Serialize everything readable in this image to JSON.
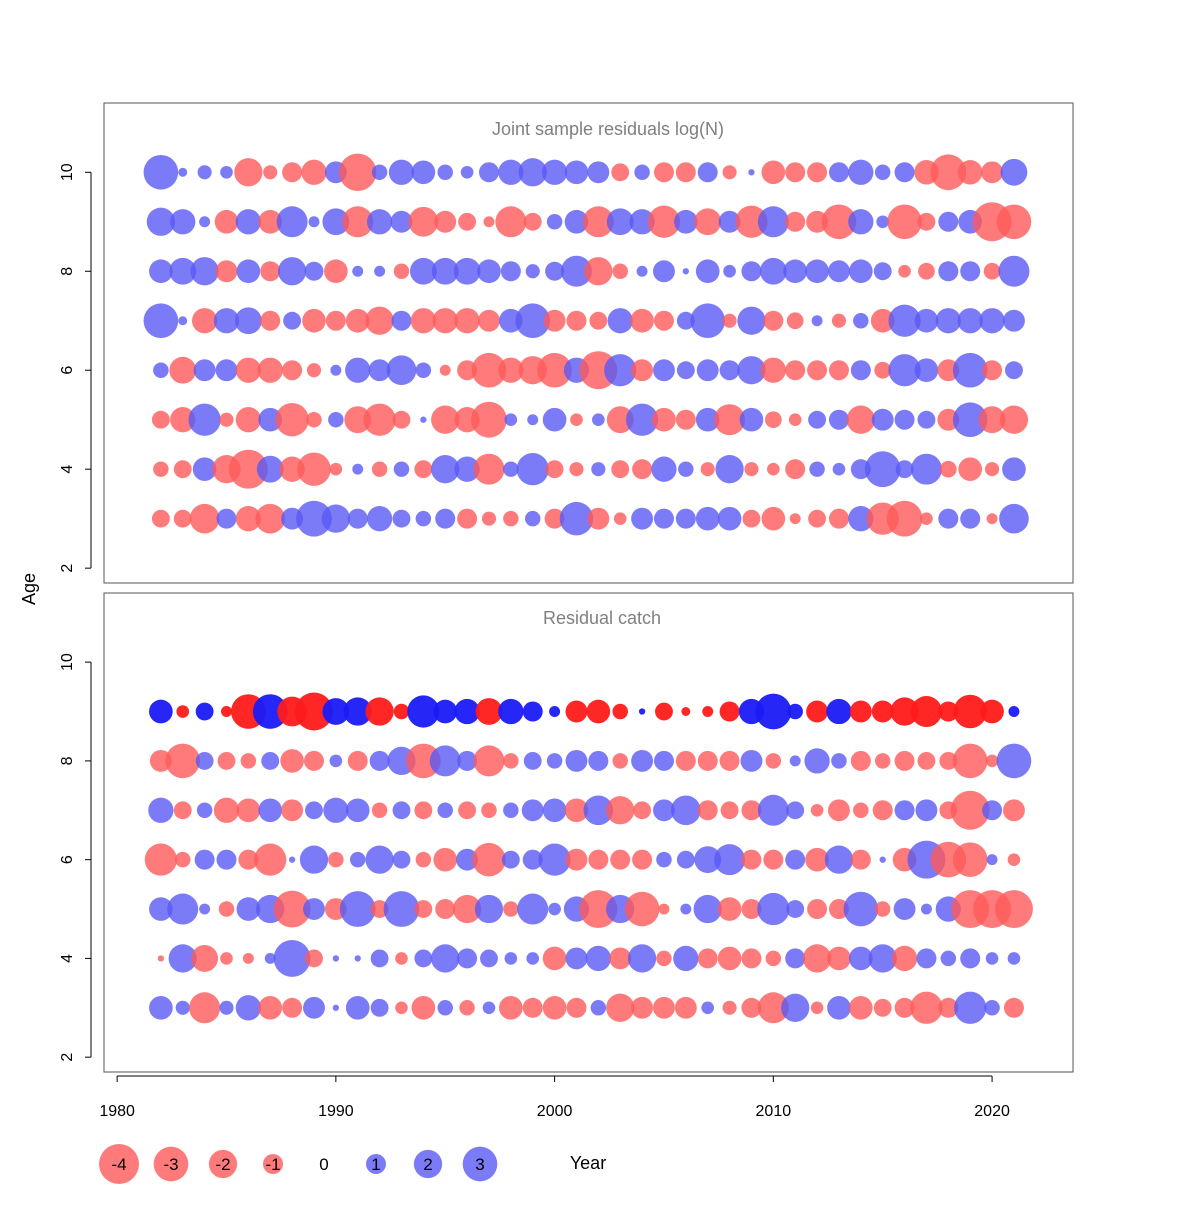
{
  "colors": {
    "positive": "#5a5af5",
    "negative": "#ff5a5a",
    "catch_age9_positive": "#1a1af5",
    "catch_age9_negative": "#ff1a1a",
    "title_text": "#808080",
    "axis": "#000000",
    "frame": "#555555"
  },
  "labels": {
    "ylabel": "Age",
    "xlabel": "Year"
  },
  "legend": {
    "values": [
      -4,
      -3,
      -2,
      -1,
      0,
      1,
      2,
      3
    ],
    "labels": [
      "-4",
      "-3",
      "-2",
      "-1",
      "0",
      "1",
      "2",
      "3"
    ]
  },
  "chart_data": [
    {
      "type": "bubble",
      "title": "Joint sample residuals log(N)",
      "xlim": [
        1979.4,
        2023.7
      ],
      "ylim": [
        1.7,
        11.4
      ],
      "x_ticks": [
        1980,
        1990,
        2000,
        2010,
        2020
      ],
      "y_ticks": [
        2,
        4,
        6,
        8,
        10
      ],
      "x": [
        1982,
        1983,
        1984,
        1985,
        1986,
        1987,
        1988,
        1989,
        1990,
        1991,
        1992,
        1993,
        1994,
        1995,
        1996,
        1997,
        1998,
        1999,
        2000,
        2001,
        2002,
        2003,
        2004,
        2005,
        2006,
        2007,
        2008,
        2009,
        2010,
        2011,
        2012,
        2013,
        2014,
        2015,
        2016,
        2017,
        2018,
        2019,
        2020,
        2021
      ],
      "ages": [
        3,
        4,
        5,
        6,
        7,
        8,
        9,
        10
      ],
      "residuals": {
        "10": [
          3.0,
          0.2,
          0.5,
          0.4,
          -2.0,
          -0.5,
          -1.0,
          -1.6,
          1.2,
          -3.5,
          0.6,
          1.6,
          1.4,
          0.6,
          0.4,
          1.0,
          1.6,
          2.0,
          1.6,
          1.4,
          1.2,
          -0.8,
          0.6,
          -1.0,
          -1.0,
          1.0,
          -0.5,
          0.1,
          -1.4,
          -1.0,
          -1.0,
          1.0,
          1.6,
          0.6,
          1.0,
          -1.5,
          -3.2,
          -1.5,
          -1.2,
          1.8
        ],
        "9": [
          2.0,
          1.6,
          0.3,
          -1.4,
          1.6,
          -1.4,
          2.4,
          0.3,
          1.8,
          -2.4,
          1.6,
          1.2,
          -2.2,
          -1.2,
          -0.8,
          -0.3,
          -2.4,
          -0.8,
          0.6,
          1.4,
          -2.4,
          1.8,
          1.6,
          -2.6,
          1.4,
          -1.8,
          1.2,
          -2.6,
          2.4,
          -1.0,
          -1.2,
          -3.0,
          1.6,
          0.4,
          -3.0,
          -0.8,
          1.0,
          1.4,
          -3.8,
          -3.0
        ],
        "8": [
          1.4,
          1.8,
          2.0,
          -1.2,
          1.4,
          -1.0,
          2.0,
          0.9,
          -1.4,
          0.3,
          0.3,
          -0.6,
          1.8,
          1.8,
          1.8,
          1.4,
          1.0,
          0.5,
          0.9,
          2.4,
          -2.0,
          -0.6,
          0.3,
          1.2,
          0.1,
          1.4,
          0.4,
          1.0,
          1.8,
          1.4,
          1.4,
          1.2,
          1.4,
          0.8,
          -0.4,
          -0.7,
          1.0,
          1.0,
          -0.7,
          2.4
        ],
        "7": [
          3.0,
          0.2,
          -1.6,
          1.6,
          1.8,
          -1.0,
          0.8,
          -1.4,
          -1.0,
          -1.4,
          -2.0,
          1.0,
          -1.6,
          -1.6,
          -1.6,
          -1.2,
          1.4,
          3.0,
          -1.2,
          -1.0,
          -0.8,
          1.6,
          -1.4,
          -1.0,
          0.8,
          3.0,
          -0.5,
          2.0,
          -1.0,
          -0.7,
          0.3,
          -0.5,
          0.6,
          -1.4,
          2.6,
          1.4,
          1.6,
          1.6,
          1.6,
          1.2
        ],
        "6": [
          0.6,
          -1.8,
          1.2,
          1.2,
          -1.6,
          -1.6,
          -1.0,
          -0.5,
          0.3,
          1.6,
          1.2,
          2.2,
          0.6,
          -0.3,
          -1.0,
          -3.0,
          -1.6,
          -2.0,
          -3.0,
          1.6,
          -3.6,
          2.6,
          -1.2,
          1.2,
          0.8,
          1.2,
          1.0,
          2.0,
          -1.6,
          -1.0,
          -1.0,
          -1.0,
          1.0,
          -0.7,
          2.6,
          1.4,
          -1.2,
          3.0,
          -1.0,
          0.8
        ],
        "5": [
          -0.8,
          -1.6,
          2.6,
          -0.5,
          -1.6,
          1.4,
          -2.8,
          -0.6,
          0.6,
          -1.8,
          -2.6,
          -0.8,
          0.1,
          -2.0,
          -1.6,
          -3.2,
          0.4,
          0.3,
          1.4,
          -0.4,
          0.4,
          -1.8,
          2.6,
          -1.4,
          -1.0,
          1.4,
          -2.4,
          1.4,
          -0.7,
          -0.4,
          0.8,
          1.0,
          -2.0,
          1.2,
          1.0,
          0.8,
          -1.2,
          3.0,
          -1.8,
          -2.0
        ],
        "4": [
          -0.6,
          -0.8,
          1.4,
          -2.0,
          -3.8,
          1.8,
          -1.6,
          -2.8,
          -0.4,
          0.3,
          -0.6,
          0.6,
          -0.8,
          2.0,
          1.6,
          -2.4,
          0.6,
          2.6,
          -0.8,
          -0.5,
          0.5,
          -0.8,
          -1.0,
          1.6,
          0.6,
          -0.5,
          2.0,
          -0.5,
          -0.4,
          -1.0,
          0.6,
          0.4,
          1.0,
          3.2,
          0.8,
          2.4,
          -0.7,
          -1.4,
          -0.5,
          1.4
        ],
        "3": [
          -0.8,
          -0.8,
          -2.2,
          1.0,
          -1.6,
          -2.2,
          1.2,
          3.2,
          2.0,
          1.0,
          1.6,
          0.8,
          0.6,
          1.0,
          -1.0,
          -0.5,
          -0.6,
          0.6,
          -1.0,
          2.8,
          -1.2,
          -0.4,
          1.2,
          1.0,
          1.0,
          1.4,
          1.4,
          -0.8,
          -1.4,
          -0.3,
          -0.8,
          -1.0,
          1.6,
          -2.6,
          -3.2,
          -0.4,
          1.0,
          1.0,
          -0.3,
          2.2
        ]
      }
    },
    {
      "type": "bubble",
      "title": "Residual catch",
      "xlim": [
        1979.4,
        2023.7
      ],
      "ylim": [
        1.7,
        11.4
      ],
      "x_ticks": [
        1980,
        1990,
        2000,
        2010,
        2020
      ],
      "y_ticks": [
        2,
        4,
        6,
        8,
        10
      ],
      "x": [
        1982,
        1983,
        1984,
        1985,
        1986,
        1987,
        1988,
        1989,
        1990,
        1991,
        1992,
        1993,
        1994,
        1995,
        1996,
        1997,
        1998,
        1999,
        2000,
        2001,
        2002,
        2003,
        2004,
        2005,
        2006,
        2007,
        2008,
        2009,
        2010,
        2011,
        2012,
        2013,
        2014,
        2015,
        2016,
        2017,
        2018,
        2019,
        2020,
        2021
      ],
      "ages": [
        3,
        4,
        5,
        6,
        7,
        8,
        9
      ],
      "residuals": {
        "9": [
          1.4,
          -0.4,
          0.8,
          -0.3,
          -3.0,
          3.0,
          -2.2,
          -3.6,
          1.8,
          2.0,
          -2.0,
          -0.6,
          2.6,
          1.4,
          1.6,
          -1.8,
          1.6,
          1.0,
          0.3,
          -1.2,
          -1.4,
          -0.6,
          0.1,
          -0.8,
          -0.2,
          -0.3,
          -1.0,
          1.6,
          3.2,
          0.6,
          -1.2,
          1.6,
          -1.2,
          -1.2,
          -2.0,
          -2.4,
          -1.0,
          -2.8,
          -1.4,
          0.3
        ],
        "8": [
          -1.2,
          -3.0,
          0.8,
          -0.8,
          -0.6,
          0.8,
          -1.4,
          -1.0,
          0.4,
          -1.0,
          1.0,
          2.0,
          -3.0,
          2.4,
          1.0,
          -2.4,
          -0.6,
          0.8,
          0.6,
          1.2,
          1.0,
          -0.6,
          1.2,
          1.0,
          -1.0,
          -1.0,
          -1.0,
          1.2,
          -0.6,
          0.3,
          1.6,
          0.6,
          -1.0,
          -0.6,
          -1.0,
          -0.8,
          -0.8,
          -3.0,
          -0.4,
          3.0
        ],
        "7": [
          1.6,
          -0.8,
          0.6,
          -1.6,
          -1.4,
          1.4,
          -1.2,
          0.8,
          1.6,
          1.4,
          -0.6,
          0.8,
          -0.8,
          0.6,
          -0.8,
          -0.6,
          0.6,
          1.2,
          1.4,
          -1.4,
          2.2,
          -2.0,
          -0.8,
          1.2,
          2.2,
          -1.0,
          -0.8,
          -1.0,
          2.4,
          0.8,
          -0.4,
          -1.2,
          -0.6,
          -1.0,
          1.0,
          1.2,
          -0.8,
          -3.8,
          1.0,
          -1.2
        ],
        "6": [
          -2.6,
          -0.6,
          1.0,
          1.0,
          -1.0,
          -2.6,
          0.1,
          2.0,
          -0.6,
          0.6,
          2.0,
          0.8,
          -0.6,
          -1.4,
          1.2,
          -2.8,
          0.8,
          1.0,
          2.6,
          -1.2,
          -1.0,
          -1.0,
          -1.0,
          0.6,
          0.8,
          1.8,
          2.4,
          -1.0,
          -1.0,
          1.0,
          -1.4,
          2.0,
          -1.0,
          0.1,
          -1.4,
          3.6,
          -3.2,
          -3.0,
          0.3,
          -0.4
        ],
        "5": [
          1.4,
          2.4,
          0.3,
          -0.6,
          1.4,
          2.0,
          -3.4,
          1.2,
          -1.2,
          3.2,
          -0.8,
          3.2,
          -0.8,
          -1.0,
          -2.0,
          2.0,
          -0.6,
          2.4,
          0.4,
          1.6,
          -3.6,
          2.0,
          -3.0,
          -0.3,
          0.3,
          2.0,
          -1.4,
          -1.0,
          2.6,
          0.8,
          -1.0,
          -1.0,
          3.0,
          -0.6,
          1.2,
          0.3,
          1.6,
          -3.6,
          -3.6,
          -3.6
        ],
        "4": [
          -0.1,
          2.0,
          -1.8,
          -0.4,
          -0.3,
          0.3,
          3.4,
          -0.8,
          0.1,
          0.1,
          0.8,
          -0.4,
          0.8,
          2.0,
          1.0,
          0.8,
          0.4,
          0.4,
          -1.4,
          1.2,
          1.6,
          -1.2,
          2.0,
          -0.6,
          1.6,
          -1.0,
          -1.4,
          -1.0,
          -0.6,
          1.0,
          -2.0,
          -1.4,
          1.4,
          2.0,
          -1.6,
          1.0,
          0.6,
          1.0,
          0.4,
          0.4
        ],
        "3": [
          1.4,
          0.5,
          -2.4,
          0.5,
          1.6,
          -1.4,
          -1.0,
          1.2,
          0.1,
          1.4,
          0.8,
          -0.4,
          -1.4,
          0.6,
          -0.6,
          0.4,
          -1.4,
          -1.0,
          -1.4,
          -1.0,
          0.6,
          -2.0,
          -1.2,
          -1.2,
          -1.2,
          0.4,
          -0.5,
          -1.0,
          -2.4,
          2.0,
          -0.4,
          1.4,
          -1.4,
          -0.8,
          -1.0,
          -2.6,
          -1.0,
          2.6,
          0.6,
          -1.0
        ]
      }
    }
  ]
}
